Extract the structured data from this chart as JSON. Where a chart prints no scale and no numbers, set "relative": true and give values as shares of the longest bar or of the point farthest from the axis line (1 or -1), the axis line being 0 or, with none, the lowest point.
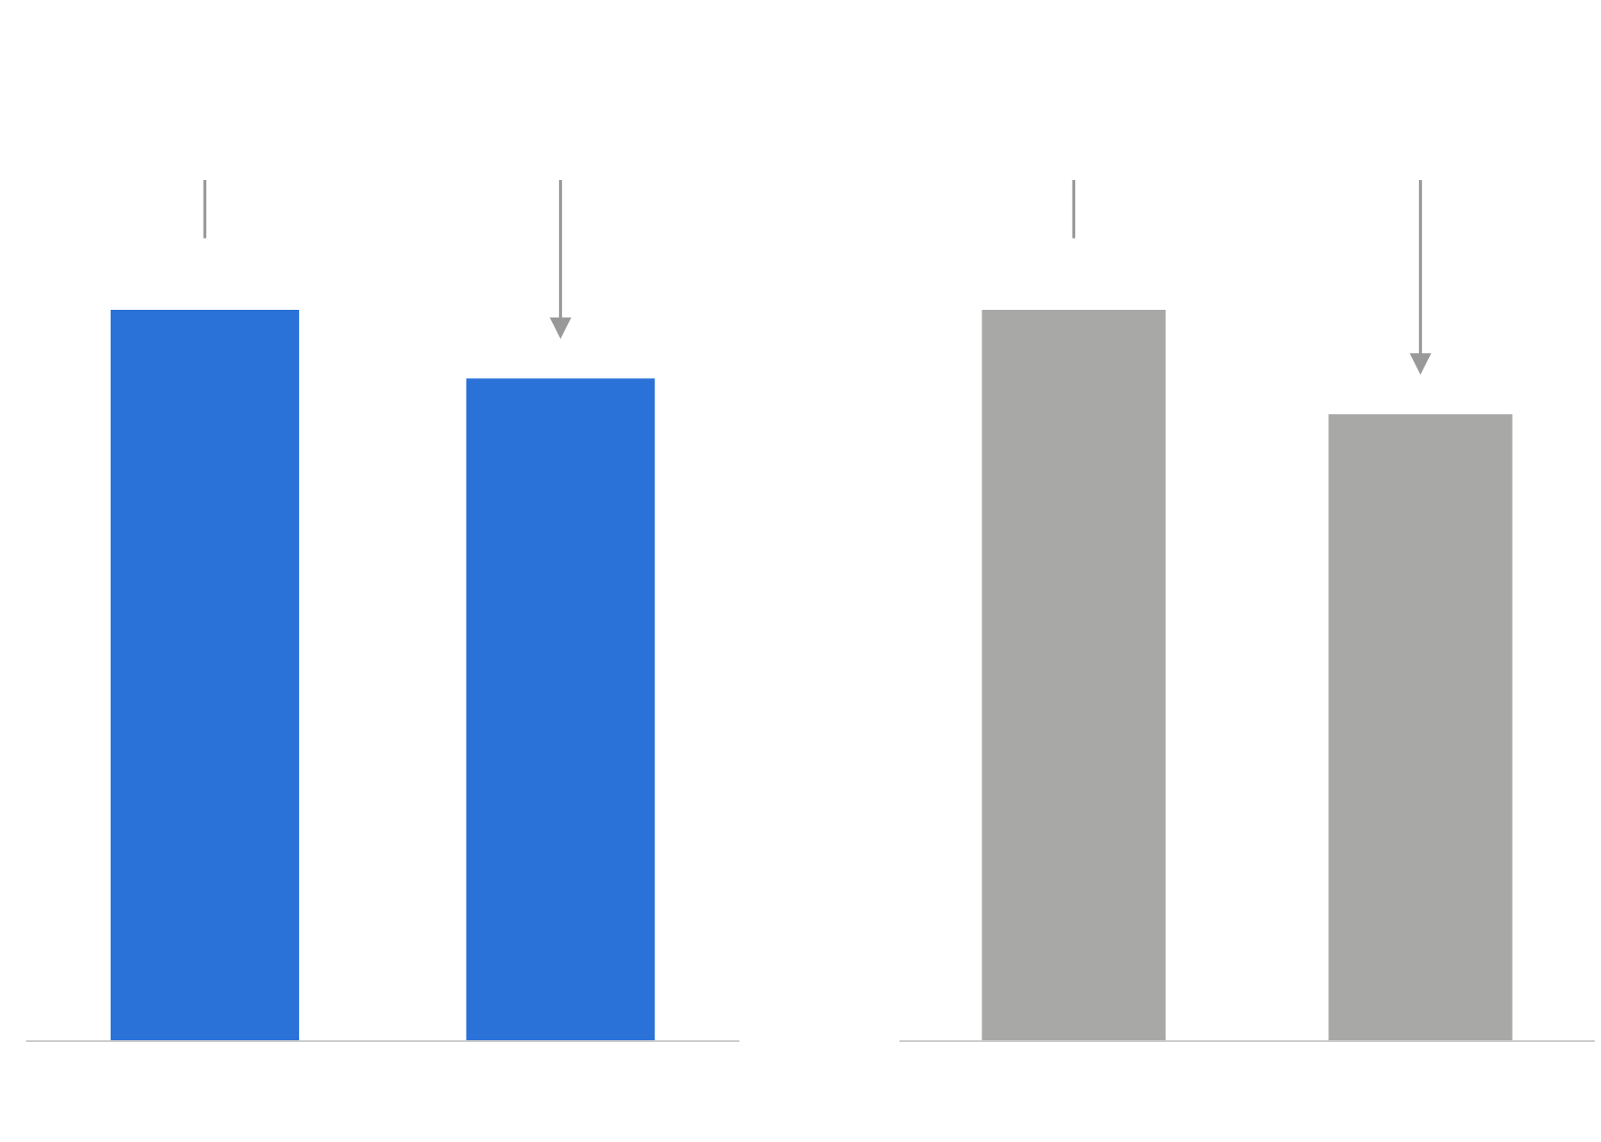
{
  "chart_data": [
    {
      "type": "bar",
      "relative": true,
      "categories": [
        null,
        null
      ],
      "values": [
        1,
        0.906
      ],
      "color": "#2a72d8"
    },
    {
      "type": "bar",
      "relative": true,
      "categories": [
        null,
        null
      ],
      "values": [
        1,
        0.857
      ],
      "color": "#a8a8a6"
    }
  ]
}
